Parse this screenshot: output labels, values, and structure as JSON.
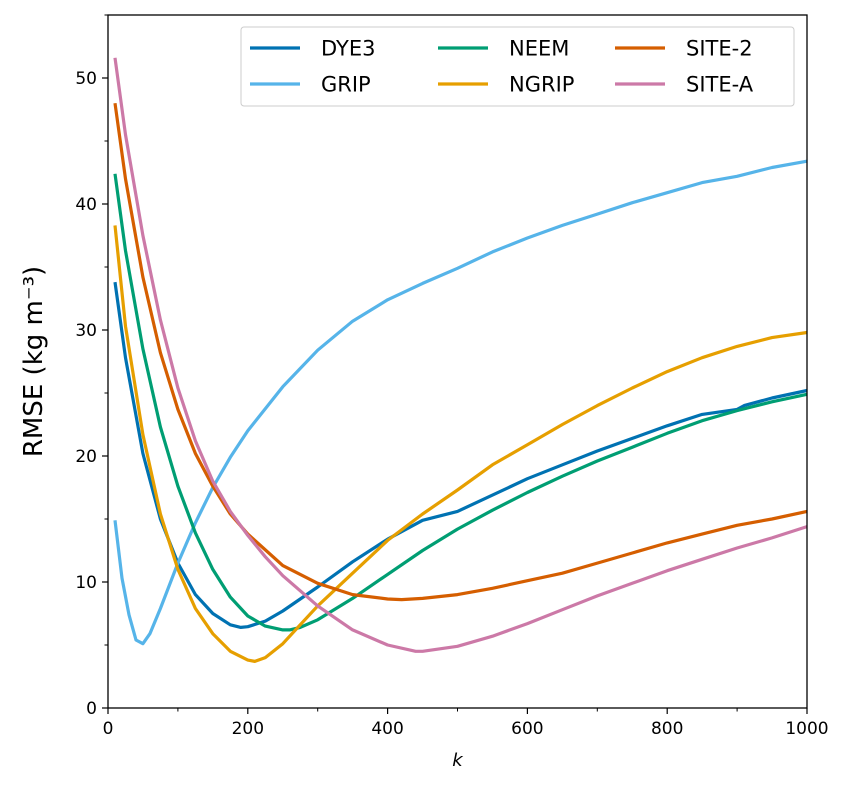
{
  "chart_data": {
    "type": "line",
    "xlabel": "k",
    "ylabel": "RMSE  (kg m⁻³)",
    "xlim": [
      0,
      1000
    ],
    "ylim": [
      0,
      55
    ],
    "x_ticks": [
      0,
      200,
      400,
      600,
      800,
      1000
    ],
    "y_ticks": [
      0,
      10,
      20,
      30,
      40,
      50
    ],
    "grid": false,
    "legend_position": "top-right",
    "legend_columns": 3,
    "series": [
      {
        "name": "DYE3",
        "color": "#0072B2",
        "x": [
          10,
          25,
          50,
          75,
          100,
          125,
          150,
          175,
          190,
          200,
          225,
          250,
          300,
          350,
          400,
          450,
          500,
          550,
          600,
          650,
          700,
          750,
          800,
          850,
          900,
          910,
          950,
          1000
        ],
        "y": [
          33.8,
          27.8,
          20.2,
          15.0,
          11.5,
          9.0,
          7.5,
          6.6,
          6.4,
          6.45,
          6.9,
          7.7,
          9.6,
          11.6,
          13.4,
          14.9,
          15.6,
          16.9,
          18.2,
          19.3,
          20.4,
          21.4,
          22.4,
          23.3,
          23.7,
          24.0,
          24.6,
          25.2
        ]
      },
      {
        "name": "GRIP",
        "color": "#56B4E9",
        "x": [
          10,
          20,
          30,
          40,
          50,
          60,
          75,
          100,
          125,
          150,
          175,
          200,
          250,
          300,
          350,
          400,
          450,
          500,
          550,
          600,
          650,
          700,
          750,
          800,
          850,
          900,
          950,
          1000
        ],
        "y": [
          14.9,
          10.3,
          7.4,
          5.4,
          5.1,
          5.9,
          7.9,
          11.5,
          14.7,
          17.5,
          19.9,
          22.0,
          25.5,
          28.4,
          30.7,
          32.4,
          33.7,
          34.9,
          36.2,
          37.3,
          38.3,
          39.2,
          40.1,
          40.9,
          41.7,
          42.2,
          42.9,
          43.4
        ]
      },
      {
        "name": "NEEM",
        "color": "#009E73",
        "x": [
          10,
          25,
          50,
          75,
          100,
          125,
          150,
          175,
          200,
          225,
          250,
          260,
          275,
          300,
          350,
          400,
          450,
          500,
          550,
          600,
          650,
          700,
          750,
          800,
          850,
          900,
          950,
          1000
        ],
        "y": [
          42.4,
          36.3,
          28.5,
          22.3,
          17.6,
          13.9,
          11.0,
          8.8,
          7.3,
          6.5,
          6.2,
          6.2,
          6.4,
          7.0,
          8.7,
          10.6,
          12.5,
          14.2,
          15.7,
          17.1,
          18.4,
          19.6,
          20.7,
          21.8,
          22.8,
          23.6,
          24.3,
          24.9
        ]
      },
      {
        "name": "NGRIP",
        "color": "#E69F00",
        "x": [
          10,
          25,
          50,
          75,
          100,
          125,
          150,
          175,
          200,
          210,
          225,
          250,
          275,
          300,
          350,
          400,
          450,
          500,
          550,
          600,
          650,
          700,
          750,
          800,
          850,
          900,
          950,
          1000
        ],
        "y": [
          38.3,
          30.3,
          21.7,
          15.4,
          11.0,
          7.9,
          5.9,
          4.5,
          3.8,
          3.7,
          4.0,
          5.1,
          6.6,
          8.1,
          10.7,
          13.3,
          15.4,
          17.3,
          19.3,
          20.9,
          22.5,
          24.0,
          25.4,
          26.7,
          27.8,
          28.7,
          29.4,
          29.8
        ]
      },
      {
        "name": "SITE-2",
        "color": "#D55E00",
        "x": [
          10,
          25,
          50,
          75,
          100,
          125,
          150,
          175,
          200,
          250,
          300,
          350,
          400,
          420,
          450,
          500,
          550,
          600,
          650,
          700,
          750,
          800,
          850,
          900,
          950,
          1000
        ],
        "y": [
          48.0,
          42.0,
          34.2,
          28.2,
          23.7,
          20.2,
          17.6,
          15.4,
          13.8,
          11.3,
          9.9,
          9.0,
          8.65,
          8.6,
          8.7,
          9.0,
          9.5,
          10.1,
          10.7,
          11.5,
          12.3,
          13.1,
          13.8,
          14.5,
          15.0,
          15.6
        ]
      },
      {
        "name": "SITE-A",
        "color": "#CC79A7",
        "x": [
          10,
          25,
          50,
          75,
          100,
          125,
          150,
          175,
          200,
          225,
          250,
          300,
          350,
          400,
          440,
          450,
          500,
          550,
          600,
          650,
          700,
          750,
          800,
          850,
          900,
          950,
          1000
        ],
        "y": [
          51.6,
          45.5,
          37.5,
          30.8,
          25.4,
          21.2,
          18.0,
          15.6,
          13.7,
          12.0,
          10.5,
          8.1,
          6.2,
          5.0,
          4.5,
          4.5,
          4.9,
          5.7,
          6.7,
          7.8,
          8.9,
          9.9,
          10.9,
          11.8,
          12.7,
          13.5,
          14.4
        ]
      }
    ]
  }
}
